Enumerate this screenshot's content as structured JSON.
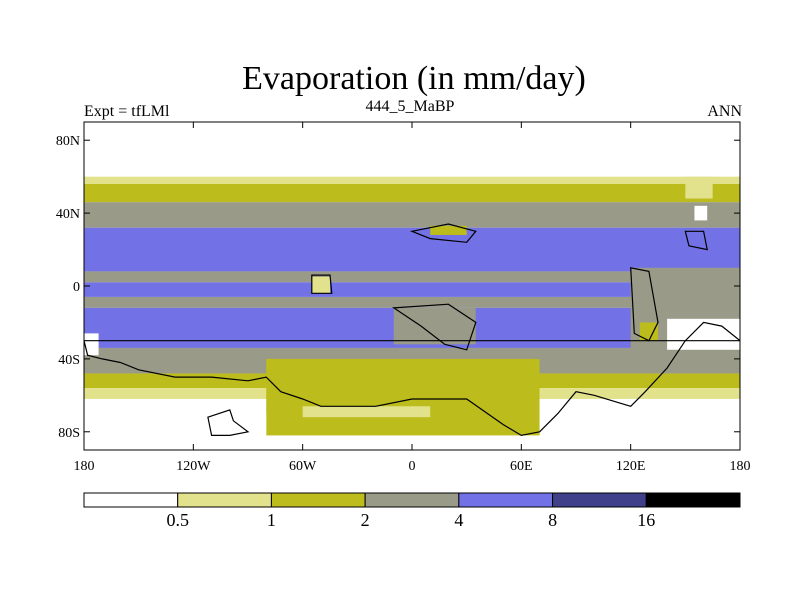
{
  "chart_data": {
    "type": "heatmap",
    "title": "Evaporation (in mm/day)",
    "left_string": "Expt = tfLMl",
    "center_string": "444_5_MaBP",
    "right_string": "ANN",
    "x_ticks": [
      {
        "value": -180,
        "label": "180"
      },
      {
        "value": -120,
        "label": "120W"
      },
      {
        "value": -60,
        "label": "60W"
      },
      {
        "value": 0,
        "label": "0"
      },
      {
        "value": 60,
        "label": "60E"
      },
      {
        "value": 120,
        "label": "120E"
      },
      {
        "value": 180,
        "label": "180"
      }
    ],
    "y_ticks": [
      {
        "value": 80,
        "label": "80N"
      },
      {
        "value": 40,
        "label": "40N"
      },
      {
        "value": 0,
        "label": "0"
      },
      {
        "value": -40,
        "label": "40S"
      },
      {
        "value": -80,
        "label": "80S"
      }
    ],
    "xlim": [
      -180,
      180
    ],
    "ylim": [
      -90,
      90
    ],
    "levels": [
      "0.5",
      "1",
      "2",
      "4",
      "8",
      "16"
    ],
    "bin_colors": [
      "#ffffff",
      "#e2e28c",
      "#bcbc1c",
      "#9a9a88",
      "#7272e6",
      "#40408a",
      "#000000"
    ],
    "bands": [
      {
        "lat_top": 90,
        "lat_bottom": 60,
        "bin": 0
      },
      {
        "lat_top": 60,
        "lat_bottom": 56,
        "bin": 1
      },
      {
        "lat_top": 56,
        "lat_bottom": 46,
        "bin": 2
      },
      {
        "lat_top": 46,
        "lat_bottom": 32,
        "bin": 3
      },
      {
        "lat_top": 32,
        "lat_bottom": 8,
        "bin": 4
      },
      {
        "lat_top": 8,
        "lat_bottom": 2,
        "bin": 3
      },
      {
        "lat_top": 2,
        "lat_bottom": -6,
        "bin": 4
      },
      {
        "lat_top": -6,
        "lat_bottom": -12,
        "bin": 3
      },
      {
        "lat_top": -12,
        "lat_bottom": -34,
        "bin": 4
      },
      {
        "lat_top": -34,
        "lat_bottom": -48,
        "bin": 3
      },
      {
        "lat_top": -48,
        "lat_bottom": -56,
        "bin": 2
      },
      {
        "lat_top": -56,
        "lat_bottom": -62,
        "bin": 1
      },
      {
        "lat_top": -62,
        "lat_bottom": -90,
        "bin": 0
      }
    ],
    "patches": [
      {
        "lon1": 120,
        "lon2": 180,
        "lat1": 10,
        "lat2": -45,
        "bin": 3
      },
      {
        "lon1": 140,
        "lon2": 180,
        "lat1": -18,
        "lat2": -35,
        "bin": 0
      },
      {
        "lon1": -180,
        "lon2": -172,
        "lat1": -26,
        "lat2": -38,
        "bin": 0
      },
      {
        "lon1": -80,
        "lon2": 70,
        "lat1": -40,
        "lat2": -82,
        "bin": 2
      },
      {
        "lon1": -60,
        "lon2": 10,
        "lat1": -66,
        "lat2": -72,
        "bin": 1
      },
      {
        "lon1": -110,
        "lon2": -80,
        "lat1": -70,
        "lat2": -82,
        "bin": 0
      },
      {
        "lon1": -10,
        "lon2": 35,
        "lat1": -12,
        "lat2": -32,
        "bin": 3
      },
      {
        "lon1": 10,
        "lon2": 30,
        "lat1": 33,
        "lat2": 28,
        "bin": 2
      },
      {
        "lon1": -55,
        "lon2": -45,
        "lat1": 5,
        "lat2": -4,
        "bin": 1
      },
      {
        "lon1": 125,
        "lon2": 135,
        "lat1": -20,
        "lat2": -30,
        "bin": 2
      },
      {
        "lon1": 150,
        "lon2": 165,
        "lat1": 60,
        "lat2": 48,
        "bin": 1
      },
      {
        "lon1": 155,
        "lon2": 162,
        "lat1": 44,
        "lat2": 36,
        "bin": 0
      }
    ]
  }
}
